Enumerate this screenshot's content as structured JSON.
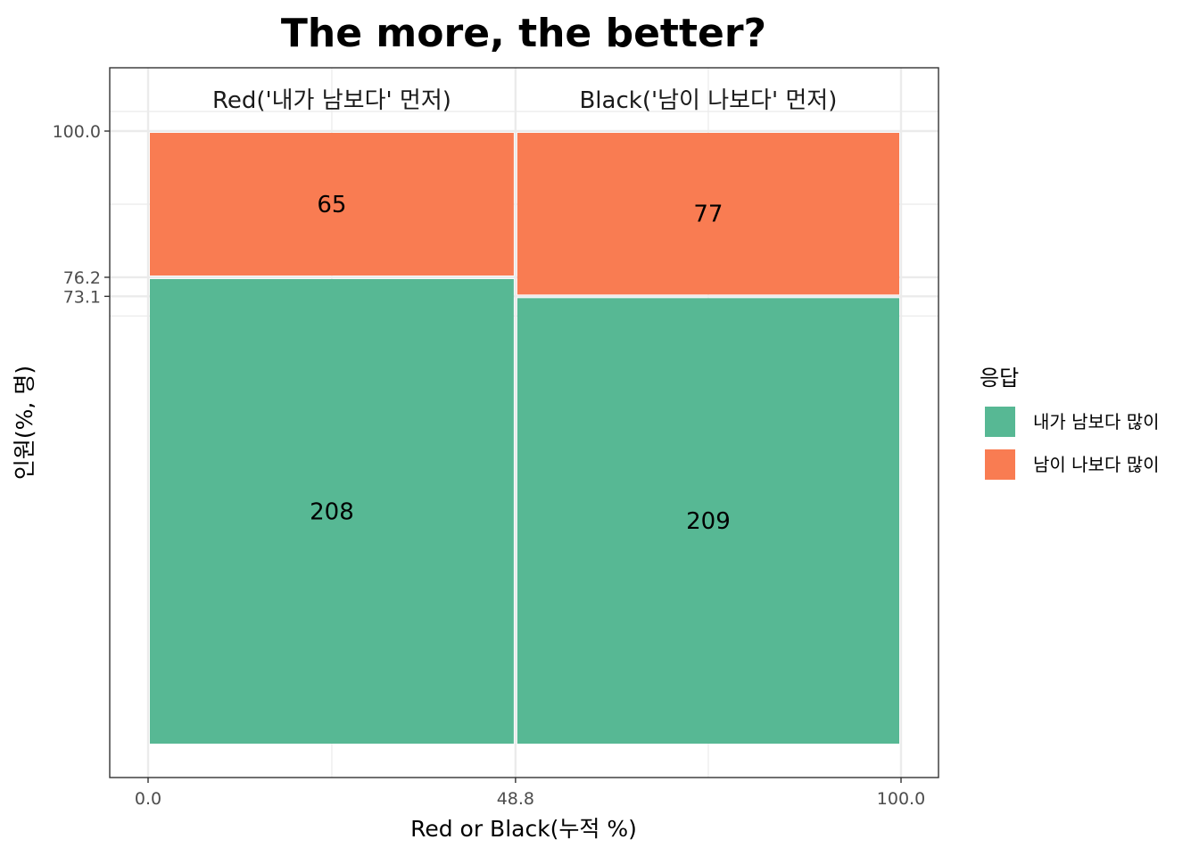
{
  "chart_data": {
    "type": "mosaic",
    "title": "The more, the better?",
    "xlabel": "Red or Black(누적 %)",
    "ylabel": "인원(%, 명)",
    "xlim": [
      0,
      100
    ],
    "ylim": [
      0,
      100
    ],
    "x_ticks": [
      "0.0",
      "48.8",
      "100.0"
    ],
    "y_ticks": [
      "100.0",
      "76.2",
      "73.1"
    ],
    "grid": true,
    "legend": {
      "title": "응답",
      "position": "right",
      "entries": [
        {
          "label": "내가 남보다 많이",
          "color": "#57b894"
        },
        {
          "label": "남이 나보다 많이",
          "color": "#f97c52"
        }
      ]
    },
    "panels": [
      {
        "label": "Red('내가 남보다' 먼저)",
        "x_start": 0.0,
        "x_end": 48.8,
        "segments": [
          {
            "response": "내가 남보다 많이",
            "count": 208,
            "pct": 76.2,
            "label": "208"
          },
          {
            "response": "남이 나보다 많이",
            "count": 65,
            "pct": 23.8,
            "label": "65"
          }
        ]
      },
      {
        "label": "Black('남이 나보다' 먼저)",
        "x_start": 48.8,
        "x_end": 100.0,
        "segments": [
          {
            "response": "내가 남보다 많이",
            "count": 209,
            "pct": 73.1,
            "label": "209"
          },
          {
            "response": "남이 나보다 많이",
            "count": 77,
            "pct": 26.9,
            "label": "77"
          }
        ]
      }
    ]
  }
}
